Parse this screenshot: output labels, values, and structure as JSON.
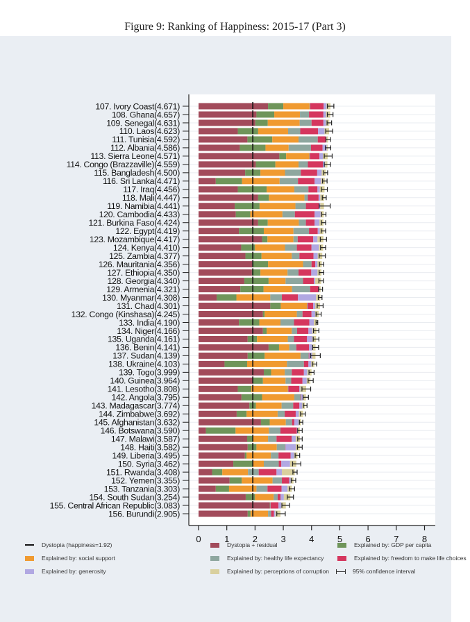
{
  "title": "Figure 9: Ranking of Happiness: 2015-17 (Part 3)",
  "chart_data": {
    "type": "bar",
    "orientation": "horizontal",
    "stacked": true,
    "title": "Figure 9: Ranking of Happiness: 2015-17 (Part 3)",
    "xlim": [
      0,
      8
    ],
    "xticks": [
      "0",
      "1",
      "2",
      "3",
      "4",
      "5",
      "6",
      "7",
      "8"
    ],
    "dystopia_line": 1.92,
    "grid": true,
    "legend_position": "bottom",
    "components": [
      {
        "key": "dys",
        "name": "Dystopia + residual",
        "color": "#a24b5b"
      },
      {
        "key": "gdp",
        "name": "Explained by: GDP per capita",
        "color": "#6f955a"
      },
      {
        "key": "soc",
        "name": "Explained by: social support",
        "color": "#f09a30"
      },
      {
        "key": "hle",
        "name": "Explained by: healthy life expectancy",
        "color": "#8ea79f"
      },
      {
        "key": "fre",
        "name": "Explained by: freedom to make life choices",
        "color": "#d5365e"
      },
      {
        "key": "gen",
        "name": "Explained by: generosity",
        "color": "#b1a8e2"
      },
      {
        "key": "cor",
        "name": "Explained by: perceptions of corruption",
        "color": "#d9d09e"
      }
    ],
    "legend": {
      "dystopia_line": "Dystopia (happiness=1.92)",
      "ci": "95% confidence interval"
    },
    "rows": [
      {
        "label": "107. Ivory Coast(4.671)",
        "score": 4.671,
        "v": [
          2.46,
          0.54,
          0.93,
          0.02,
          0.48,
          0.1,
          0.14
        ],
        "ci": [
          4.56,
          4.79
        ]
      },
      {
        "label": "108. Ghana(4.657)",
        "score": 4.657,
        "v": [
          2.05,
          0.63,
          0.91,
          0.32,
          0.51,
          0.09,
          0.15
        ],
        "ci": [
          4.56,
          4.76
        ]
      },
      {
        "label": "109. Senegal(4.631)",
        "score": 4.631,
        "v": [
          2.01,
          0.44,
          1.13,
          0.42,
          0.42,
          0.09,
          0.12
        ],
        "ci": [
          4.55,
          4.71
        ]
      },
      {
        "label": "110. Laos(4.623)",
        "score": 4.623,
        "v": [
          1.39,
          0.72,
          1.06,
          0.43,
          0.63,
          0.23,
          0.16
        ],
        "ci": [
          4.5,
          4.75
        ]
      },
      {
        "label": "111. Tunisia(4.592)",
        "score": 4.592,
        "v": [
          1.73,
          0.88,
          0.93,
          0.68,
          0.28,
          0.03,
          0.06
        ],
        "ci": [
          4.51,
          4.67
        ]
      },
      {
        "label": "112. Albania(4.586)",
        "score": 4.586,
        "v": [
          1.46,
          0.91,
          0.82,
          0.79,
          0.41,
          0.15,
          0.04
        ],
        "ci": [
          4.49,
          4.68
        ]
      },
      {
        "label": "113. Sierra Leone(4.571)",
        "score": 4.571,
        "v": [
          2.86,
          0.24,
          0.82,
          0.02,
          0.34,
          0.12,
          0.17
        ],
        "ci": [
          4.45,
          4.73
        ]
      },
      {
        "label": "114. Congo (Brazzaville)(4.559)",
        "score": 4.559,
        "v": [
          2.03,
          0.69,
          0.82,
          0.33,
          0.53,
          0.08,
          0.08
        ],
        "ci": [
          4.45,
          4.67
        ]
      },
      {
        "label": "115. Bangladesh(4.500)",
        "score": 4.5,
        "v": [
          1.65,
          0.54,
          0.87,
          0.56,
          0.58,
          0.16,
          0.14
        ],
        "ci": [
          4.43,
          4.57
        ]
      },
      {
        "label": "116. Sri Lanka(4.471)",
        "score": 4.471,
        "v": [
          0.61,
          0.93,
          1.33,
          0.65,
          0.59,
          0.23,
          0.13
        ],
        "ci": [
          4.39,
          4.55
        ]
      },
      {
        "label": "117. Iraq(4.456)",
        "score": 4.456,
        "v": [
          1.39,
          1.02,
          0.98,
          0.5,
          0.32,
          0.08,
          0.17
        ],
        "ci": [
          4.35,
          4.56
        ]
      },
      {
        "label": "118. Mali(4.447)",
        "score": 4.447,
        "v": [
          2.11,
          0.38,
          1.26,
          0.12,
          0.38,
          0.06,
          0.14
        ],
        "ci": [
          4.38,
          4.52
        ]
      },
      {
        "label": "119. Namibia(4.441)",
        "score": 4.441,
        "v": [
          1.28,
          0.88,
          1.27,
          0.37,
          0.46,
          0.05,
          0.13
        ],
        "ci": [
          4.27,
          4.66
        ]
      },
      {
        "label": "120. Cambodia(4.433)",
        "score": 4.433,
        "v": [
          1.32,
          0.51,
          1.14,
          0.44,
          0.7,
          0.21,
          0.11
        ],
        "ci": [
          4.36,
          4.51
        ]
      },
      {
        "label": "121. Burkina Faso(4.424)",
        "score": 4.424,
        "v": [
          2.11,
          0.34,
          1.1,
          0.25,
          0.31,
          0.17,
          0.14
        ],
        "ci": [
          4.35,
          4.5
        ]
      },
      {
        "label": "122. Egypt(4.419)",
        "score": 4.419,
        "v": [
          1.43,
          0.88,
          1.05,
          0.55,
          0.31,
          0.07,
          0.13
        ],
        "ci": [
          4.34,
          4.5
        ]
      },
      {
        "label": "123. Mozambique(4.417)",
        "score": 4.417,
        "v": [
          2.25,
          0.19,
          0.92,
          0.15,
          0.55,
          0.15,
          0.21
        ],
        "ci": [
          4.31,
          4.53
        ]
      },
      {
        "label": "124. Kenya(4.410)",
        "score": 4.41,
        "v": [
          1.51,
          0.49,
          1.06,
          0.42,
          0.52,
          0.26,
          0.15
        ],
        "ci": [
          4.32,
          4.5
        ]
      },
      {
        "label": "125. Zambia(4.377)",
        "score": 4.377,
        "v": [
          1.66,
          0.57,
          1.07,
          0.27,
          0.5,
          0.15,
          0.16
        ],
        "ci": [
          4.27,
          4.49
        ]
      },
      {
        "label": "126. Mauritania(4.356)",
        "score": 4.356,
        "v": [
          1.9,
          0.56,
          1.24,
          0.3,
          0.13,
          0.08,
          0.15
        ],
        "ci": [
          4.28,
          4.43
        ]
      },
      {
        "label": "127. Ethiopia(4.350)",
        "score": 4.35,
        "v": [
          1.89,
          0.3,
          0.96,
          0.39,
          0.45,
          0.22,
          0.14
        ],
        "ci": [
          4.27,
          4.43
        ]
      },
      {
        "label": "128. Georgia(4.340)",
        "score": 4.34,
        "v": [
          1.62,
          0.86,
          0.6,
          0.62,
          0.38,
          0.05,
          0.21
        ],
        "ci": [
          4.26,
          4.42
        ]
      },
      {
        "label": "129. Armenia(4.321)",
        "score": 4.321,
        "v": [
          1.48,
          0.82,
          1.01,
          0.64,
          0.3,
          0.03,
          0.04
        ],
        "ci": [
          4.25,
          4.39
        ]
      },
      {
        "label": "130. Myanmar(4.308)",
        "score": 4.308,
        "v": [
          0.64,
          0.7,
          1.2,
          0.41,
          0.57,
          0.64,
          0.15
        ],
        "ci": [
          4.24,
          4.37
        ]
      },
      {
        "label": "131. Chad(4.301)",
        "score": 4.301,
        "v": [
          2.54,
          0.37,
          0.93,
          0.02,
          0.2,
          0.07,
          0.17
        ],
        "ci": [
          4.2,
          4.41
        ]
      },
      {
        "label": "132. Congo (Kinshasa)(4.245)",
        "score": 4.245,
        "v": [
          2.28,
          0.06,
          1.14,
          0.2,
          0.32,
          0.13,
          0.12
        ],
        "ci": [
          4.16,
          4.34
        ]
      },
      {
        "label": "133. India(4.190)",
        "score": 4.19,
        "v": [
          1.43,
          0.72,
          0.75,
          0.48,
          0.54,
          0.16,
          0.11
        ],
        "ci": [
          4.16,
          4.22
        ]
      },
      {
        "label": "134. Niger(4.166)",
        "score": 4.166,
        "v": [
          2.28,
          0.13,
          0.89,
          0.19,
          0.4,
          0.14,
          0.14
        ],
        "ci": [
          4.07,
          4.26
        ]
      },
      {
        "label": "135. Uganda(4.161)",
        "score": 4.161,
        "v": [
          1.74,
          0.33,
          1.09,
          0.22,
          0.46,
          0.19,
          0.13
        ],
        "ci": [
          4.06,
          4.26
        ]
      },
      {
        "label": "136. Benin(4.141)",
        "score": 4.141,
        "v": [
          2.48,
          0.37,
          0.36,
          0.25,
          0.45,
          0.11,
          0.12
        ],
        "ci": [
          4.04,
          4.25
        ]
      },
      {
        "label": "137. Sudan(4.139)",
        "score": 4.139,
        "v": [
          1.74,
          0.6,
          1.27,
          0.29,
          0.02,
          0.1,
          0.12
        ],
        "ci": [
          3.97,
          4.31
        ]
      },
      {
        "label": "138. Ukraine(4.103)",
        "score": 4.103,
        "v": [
          0.92,
          0.8,
          1.41,
          0.6,
          0.16,
          0.1,
          0.11
        ],
        "ci": [
          4.03,
          4.18
        ]
      },
      {
        "label": "139. Togo(3.999)",
        "score": 3.999,
        "v": [
          2.31,
          0.26,
          0.48,
          0.25,
          0.43,
          0.12,
          0.15
        ],
        "ci": [
          3.91,
          4.09
        ]
      },
      {
        "label": "140. Guinea(3.964)",
        "score": 3.964,
        "v": [
          1.93,
          0.35,
          0.8,
          0.2,
          0.4,
          0.15,
          0.13
        ],
        "ci": [
          3.88,
          4.06
        ]
      },
      {
        "label": "141. Lesotho(3.808)",
        "score": 3.808,
        "v": [
          1.39,
          0.48,
          1.29,
          0.02,
          0.39,
          0.03,
          0.21
        ],
        "ci": [
          3.66,
          3.97
        ]
      },
      {
        "label": "142. Angola(3.795)",
        "score": 3.795,
        "v": [
          1.52,
          0.73,
          1.14,
          0.23,
          0.02,
          0.05,
          0.11
        ],
        "ci": [
          3.7,
          3.89
        ]
      },
      {
        "label": "143. Madagascar(3.774)",
        "score": 3.774,
        "v": [
          1.8,
          0.23,
          0.91,
          0.41,
          0.22,
          0.1,
          0.1
        ],
        "ci": [
          3.71,
          3.84
        ]
      },
      {
        "label": "144. Zimbabwe(3.692)",
        "score": 3.692,
        "v": [
          1.35,
          0.35,
          1.1,
          0.25,
          0.39,
          0.11,
          0.15
        ],
        "ci": [
          3.61,
          3.78
        ]
      },
      {
        "label": "145. Afghanistan(3.632)",
        "score": 3.632,
        "v": [
          2.21,
          0.31,
          0.57,
          0.22,
          0.08,
          0.15,
          0.09
        ],
        "ci": [
          3.57,
          3.69
        ]
      },
      {
        "label": "146. Botswana(3.590)",
        "score": 3.59,
        "v": [
          0.26,
          1.05,
          1.18,
          0.41,
          0.58,
          0.04,
          0.07
        ],
        "ci": [
          3.51,
          3.67
        ]
      },
      {
        "label": "147. Malawi(3.587)",
        "score": 3.587,
        "v": [
          1.72,
          0.2,
          0.54,
          0.3,
          0.54,
          0.14,
          0.15
        ],
        "ci": [
          3.51,
          3.67
        ]
      },
      {
        "label": "148. Haiti(3.582)",
        "score": 3.582,
        "v": [
          1.74,
          0.31,
          0.72,
          0.3,
          0.01,
          0.36,
          0.14
        ],
        "ci": [
          3.5,
          3.67
        ]
      },
      {
        "label": "149. Liberia(3.495)",
        "score": 3.495,
        "v": [
          1.64,
          0.06,
          0.86,
          0.27,
          0.43,
          0.12,
          0.12
        ],
        "ci": [
          3.42,
          3.58
        ]
      },
      {
        "label": "150. Syria(3.462)",
        "score": 3.462,
        "v": [
          1.23,
          0.69,
          0.39,
          0.53,
          0.09,
          0.31,
          0.22
        ],
        "ci": [
          3.33,
          3.62
        ]
      },
      {
        "label": "151. Rwanda(3.408)",
        "score": 3.408,
        "v": [
          0.48,
          0.36,
          0.91,
          0.38,
          0.63,
          0.19,
          0.46
        ],
        "ci": [
          3.34,
          3.49
        ]
      },
      {
        "label": "152. Yemen(3.355)",
        "score": 3.355,
        "v": [
          1.1,
          0.43,
          1.09,
          0.33,
          0.26,
          0.05,
          0.1
        ],
        "ci": [
          3.28,
          3.44
        ]
      },
      {
        "label": "153. Tanzania(3.303)",
        "score": 3.303,
        "v": [
          0.61,
          0.47,
          0.97,
          0.39,
          0.5,
          0.21,
          0.15
        ],
        "ci": [
          3.21,
          3.4
        ]
      },
      {
        "label": "154. South Sudan(3.254)",
        "score": 3.254,
        "v": [
          1.67,
          0.33,
          0.66,
          0.14,
          0.1,
          0.12,
          0.23
        ],
        "ci": [
          3.14,
          3.36
        ]
      },
      {
        "label": "155. Central African Republic(3.083)",
        "score": 3.083,
        "v": [
          2.52,
          0.01,
          0.0,
          0.02,
          0.28,
          0.1,
          0.16
        ],
        "ci": [
          2.95,
          3.22
        ]
      },
      {
        "label": "156. Burundi(2.905)",
        "score": 2.905,
        "v": [
          1.74,
          0.1,
          0.62,
          0.11,
          0.1,
          0.05,
          0.18
        ],
        "ci": [
          2.77,
          3.07
        ]
      }
    ]
  }
}
